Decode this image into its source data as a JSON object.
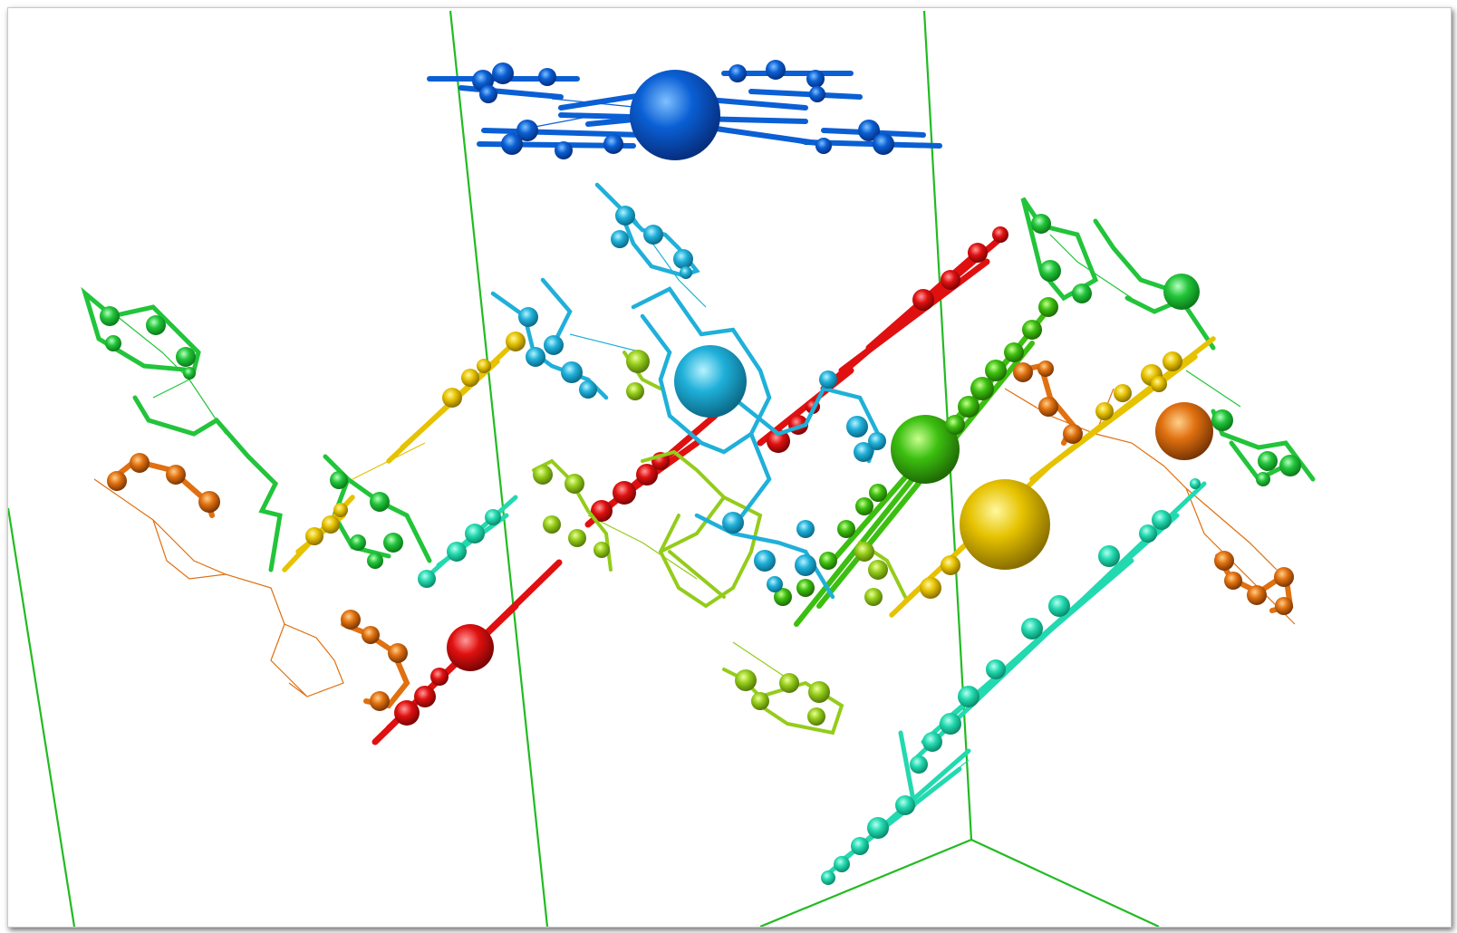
{
  "viewer": {
    "background": "#ffffff",
    "cell_color": "#22bb22",
    "palette": {
      "blue": "#0a5fd4",
      "cyan": "#1fb0d9",
      "teal": "#22d9b0",
      "green": "#22c43a",
      "lime": "#94cc1a",
      "yellow": "#e6c200",
      "orange": "#e07010",
      "red": "#e01010",
      "leafgreen": "#3cbf10"
    }
  }
}
